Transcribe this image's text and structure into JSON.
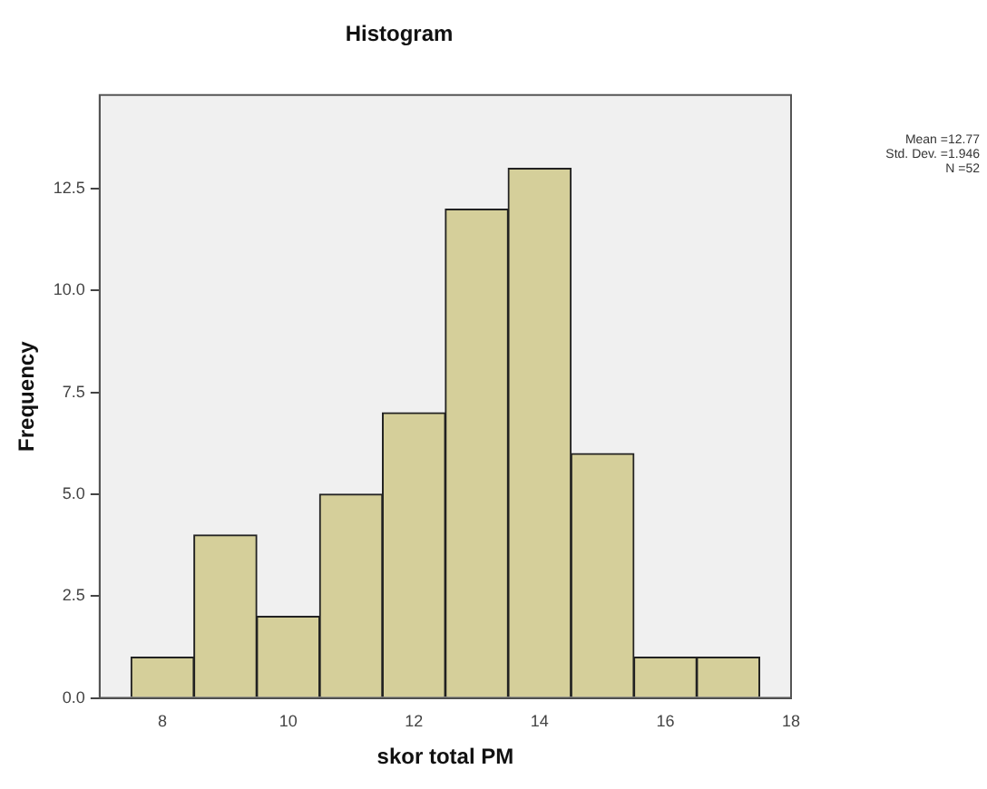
{
  "chart_data": {
    "type": "histogram",
    "title": "Histogram",
    "xlabel": "skor total PM",
    "ylabel": "Frequency",
    "bins": [
      7.5,
      8.5,
      9.5,
      10.5,
      11.5,
      12.5,
      13.5,
      14.5,
      15.5,
      16.5,
      17.5
    ],
    "values": [
      1,
      4,
      2,
      5,
      7,
      12,
      13,
      6,
      1,
      1
    ],
    "color": "#d5cf9a",
    "xlim": [
      7,
      18
    ],
    "xticks": [
      8,
      10,
      12,
      14,
      16,
      18
    ],
    "ylim": [
      0,
      14.8
    ],
    "yticks": [
      {
        "value": 0,
        "label": "0.0"
      },
      {
        "value": 2.5,
        "label": "2.5"
      },
      {
        "value": 5,
        "label": "5.0"
      },
      {
        "value": 7.5,
        "label": "7.5"
      },
      {
        "value": 10,
        "label": "10.0"
      },
      {
        "value": 12.5,
        "label": "12.5"
      }
    ],
    "grid": false,
    "legend": false,
    "annotations": [
      "Mean =12.77",
      "Std. Dev. =1.946",
      "N =52"
    ]
  }
}
